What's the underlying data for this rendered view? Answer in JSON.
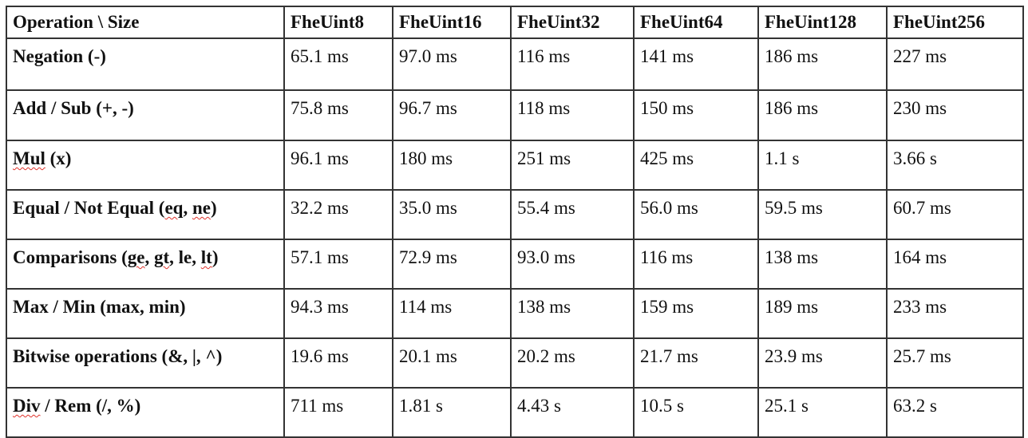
{
  "table": {
    "headers": [
      "Operation \\ Size",
      "FheUint8",
      "FheUint16",
      "FheUint32",
      "FheUint64",
      "FheUint128",
      "FheUint256"
    ],
    "rows": [
      {
        "operation": [
          {
            "t": "Negation (-)"
          }
        ],
        "values": [
          "65.1 ms",
          "97.0 ms",
          "116 ms",
          "141 ms",
          "186 ms",
          "227 ms"
        ]
      },
      {
        "operation": [
          {
            "t": "Add / Sub (+, -)"
          }
        ],
        "values": [
          "75.8 ms",
          "96.7 ms",
          "118 ms",
          "150 ms",
          "186 ms",
          "230 ms"
        ]
      },
      {
        "operation": [
          {
            "t": "Mul",
            "sq": true
          },
          {
            "t": " (x)"
          }
        ],
        "values": [
          "96.1 ms",
          "180 ms",
          "251 ms",
          "425 ms",
          "1.1 s",
          "3.66 s"
        ]
      },
      {
        "operation": [
          {
            "t": "Equal / Not Equal ("
          },
          {
            "t": "eq",
            "sq": true
          },
          {
            "t": ", "
          },
          {
            "t": "ne",
            "sq": true
          },
          {
            "t": ")"
          }
        ],
        "values": [
          "32.2 ms",
          "35.0 ms",
          "55.4 ms",
          "56.0 ms",
          "59.5 ms",
          "60.7 ms"
        ]
      },
      {
        "operation": [
          {
            "t": "Comparisons ("
          },
          {
            "t": "ge",
            "sq": true
          },
          {
            "t": ", "
          },
          {
            "t": "gt",
            "sq": true
          },
          {
            "t": ", le, "
          },
          {
            "t": "lt",
            "sq": true
          },
          {
            "t": ")"
          }
        ],
        "values": [
          "57.1 ms",
          "72.9 ms",
          "93.0 ms",
          "116 ms",
          "138 ms",
          "164 ms"
        ]
      },
      {
        "operation": [
          {
            "t": "Max / Min (max, min)"
          }
        ],
        "values": [
          "94.3 ms",
          "114 ms",
          "138 ms",
          "159 ms",
          "189 ms",
          "233 ms"
        ]
      },
      {
        "operation": [
          {
            "t": "Bitwise operations (&, |, ^)"
          }
        ],
        "values": [
          "19.6 ms",
          "20.1 ms",
          "20.2 ms",
          "21.7 ms",
          "23.9 ms",
          "25.7 ms"
        ]
      },
      {
        "operation": [
          {
            "t": "Div",
            "sq": true
          },
          {
            "t": " / Rem (/, %)"
          }
        ],
        "values": [
          "711 ms",
          "1.81 s",
          "4.43 s",
          "10.5 s",
          "25.1 s",
          "63.2 s"
        ]
      }
    ]
  },
  "colors": {
    "border": "#333333",
    "text": "#111111",
    "spellcheck_underline": "#e0322b"
  }
}
